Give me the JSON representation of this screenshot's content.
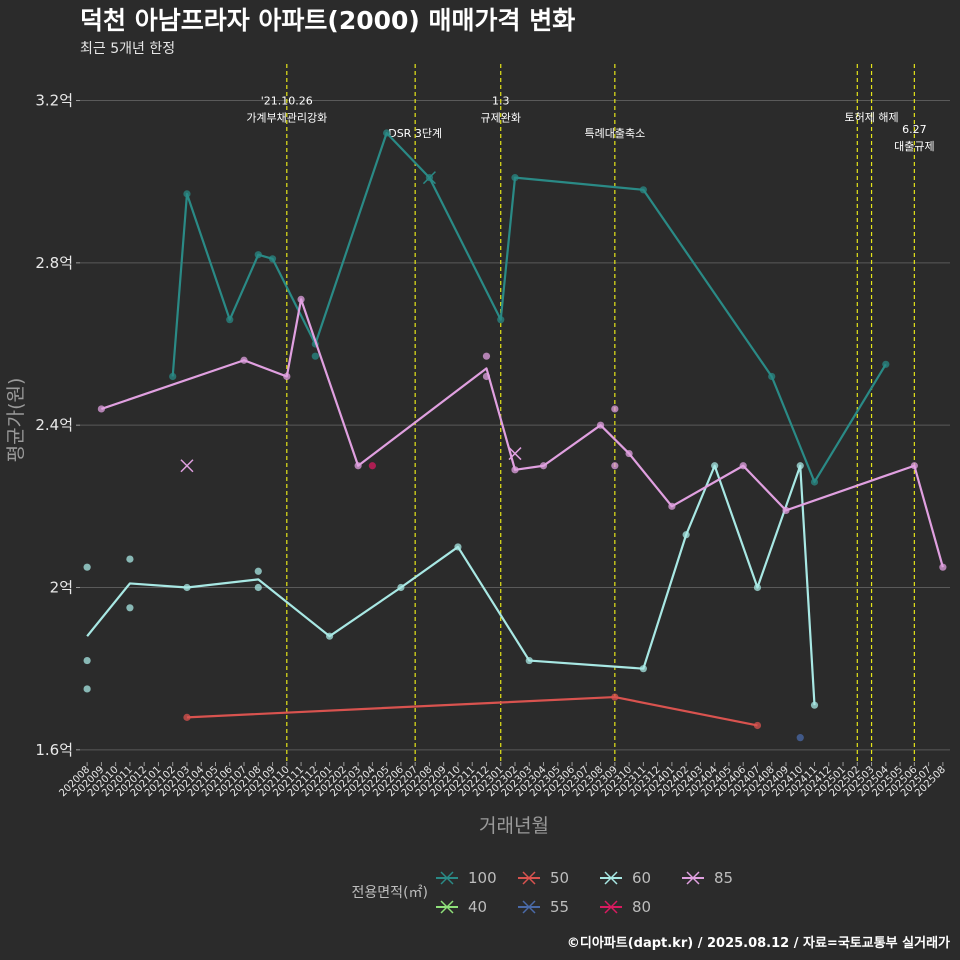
{
  "header": {
    "title": "덕천 아남프라자 아파트(2000) 매매가격 변화",
    "subtitle": "최근 5개년 한정"
  },
  "caption": "©디아파트(dapt.kr) / 2025.08.12 / 자료=국토교통부 실거래가",
  "colors": {
    "background": "#2b2b2b",
    "grid": "#5a5a5a",
    "event_line": "#e6e619",
    "s100": "#2a8a86",
    "s40": "#8fe07a",
    "s50": "#d9534f",
    "s55": "#4a6aa8",
    "s60": "#a8e8e4",
    "s80": "#d81b60",
    "s85": "#e0a0e0"
  },
  "chart_data": {
    "type": "line",
    "xlabel": "거래년월",
    "ylabel": "평균가(원)",
    "x_categories": [
      "202008",
      "202009",
      "202010",
      "202011",
      "202012",
      "202101",
      "202102",
      "202103",
      "202104",
      "202105",
      "202106",
      "202107",
      "202108",
      "202109",
      "202110",
      "202111",
      "202112",
      "202201",
      "202202",
      "202203",
      "202204",
      "202205",
      "202206",
      "202207",
      "202208",
      "202209",
      "202210",
      "202211",
      "202212",
      "202301",
      "202302",
      "202303",
      "202304",
      "202305",
      "202306",
      "202307",
      "202308",
      "202309",
      "202310",
      "202311",
      "202312",
      "202401",
      "202402",
      "202403",
      "202404",
      "202405",
      "202406",
      "202407",
      "202408",
      "202409",
      "202410",
      "202411",
      "202412",
      "202501",
      "202502",
      "202503",
      "202504",
      "202505",
      "202506",
      "202507",
      "202508"
    ],
    "y_ticks": [
      {
        "value": 1.6,
        "label": "1.6억"
      },
      {
        "value": 2.0,
        "label": "2억"
      },
      {
        "value": 2.4,
        "label": "2.4억"
      },
      {
        "value": 2.8,
        "label": "2.8억"
      },
      {
        "value": 3.2,
        "label": "3.2억"
      }
    ],
    "ylim": [
      1.57,
      3.29
    ],
    "legend_title": "전용면적(㎡)",
    "legend_placement": "bottom",
    "legend": [
      {
        "name": "100",
        "color_key": "s100"
      },
      {
        "name": "50",
        "color_key": "s50"
      },
      {
        "name": "60",
        "color_key": "s60"
      },
      {
        "name": "85",
        "color_key": "s85"
      },
      {
        "name": "40",
        "color_key": "s40"
      },
      {
        "name": "55",
        "color_key": "s55"
      },
      {
        "name": "80",
        "color_key": "s80"
      }
    ],
    "events": [
      {
        "x": "202110",
        "lines": [
          "'21.10.26",
          "가계부채관리강화"
        ],
        "label_y": 3.19
      },
      {
        "x": "202207",
        "lines": [
          "DSR 3단계"
        ],
        "label_y": 3.11
      },
      {
        "x": "202301",
        "lines": [
          "1.3",
          "규제완화"
        ],
        "label_y": 3.19
      },
      {
        "x": "202309",
        "lines": [
          "특례대출축소"
        ],
        "label_y": 3.11
      },
      {
        "x": "202502",
        "lines": [],
        "label_y": 3.2
      },
      {
        "x": "202503",
        "lines": [
          "토허제 해제"
        ],
        "label_y": 3.15
      },
      {
        "x": "202506",
        "lines": [
          "6.27",
          "대출규제"
        ],
        "label_y": 3.12
      }
    ],
    "series": [
      {
        "name": "100",
        "color_key": "s100",
        "line": [
          [
            "202102",
            2.52
          ],
          [
            "202103",
            2.97
          ],
          [
            "202106",
            2.66
          ],
          [
            "202108",
            2.82
          ],
          [
            "202109",
            2.81
          ],
          [
            "202112",
            2.6
          ],
          [
            "202205",
            3.12
          ],
          [
            "202208",
            3.01
          ],
          [
            "202301",
            2.66
          ],
          [
            "202302",
            3.01
          ],
          [
            "202311",
            2.98
          ],
          [
            "202408",
            2.52
          ],
          [
            "202411",
            2.26
          ],
          [
            "202504",
            2.55
          ]
        ],
        "points": [
          [
            "202102",
            2.52
          ],
          [
            "202103",
            2.97
          ],
          [
            "202106",
            2.66
          ],
          [
            "202108",
            2.82
          ],
          [
            "202109",
            2.81
          ],
          [
            "202112",
            2.6
          ],
          [
            "202112",
            2.57
          ],
          [
            "202205",
            3.12
          ],
          [
            "202208",
            3.01
          ],
          [
            "202301",
            2.66
          ],
          [
            "202302",
            3.01
          ],
          [
            "202311",
            2.98
          ],
          [
            "202408",
            2.52
          ],
          [
            "202411",
            2.26
          ],
          [
            "202504",
            2.55
          ]
        ],
        "crosses": [
          [
            "202208",
            3.01
          ]
        ]
      },
      {
        "name": "85",
        "color_key": "s85",
        "line": [
          [
            "202009",
            2.44
          ],
          [
            "202107",
            2.56
          ],
          [
            "202110",
            2.52
          ],
          [
            "202111",
            2.71
          ],
          [
            "202203",
            2.3
          ],
          [
            "202212",
            2.54
          ],
          [
            "202302",
            2.29
          ],
          [
            "202304",
            2.3
          ],
          [
            "202308",
            2.4
          ],
          [
            "202310",
            2.33
          ],
          [
            "202401",
            2.2
          ],
          [
            "202406",
            2.3
          ],
          [
            "202409",
            2.19
          ],
          [
            "202506",
            2.3
          ],
          [
            "202508",
            2.05
          ]
        ],
        "points": [
          [
            "202009",
            2.44
          ],
          [
            "202107",
            2.56
          ],
          [
            "202110",
            2.52
          ],
          [
            "202111",
            2.71
          ],
          [
            "202203",
            2.3
          ],
          [
            "202212",
            2.57
          ],
          [
            "202212",
            2.52
          ],
          [
            "202302",
            2.29
          ],
          [
            "202304",
            2.3
          ],
          [
            "202308",
            2.4
          ],
          [
            "202309",
            2.44
          ],
          [
            "202309",
            2.3
          ],
          [
            "202310",
            2.33
          ],
          [
            "202401",
            2.2
          ],
          [
            "202406",
            2.3
          ],
          [
            "202409",
            2.19
          ],
          [
            "202506",
            2.3
          ],
          [
            "202508",
            2.05
          ]
        ],
        "crosses": [
          [
            "202103",
            2.3
          ],
          [
            "202302",
            2.33
          ]
        ]
      },
      {
        "name": "60",
        "color_key": "s60",
        "line": [
          [
            "202008",
            1.88
          ],
          [
            "202011",
            2.01
          ],
          [
            "202103",
            2.0
          ],
          [
            "202108",
            2.02
          ],
          [
            "202201",
            1.88
          ],
          [
            "202206",
            2.0
          ],
          [
            "202210",
            2.1
          ],
          [
            "202303",
            1.82
          ],
          [
            "202311",
            1.8
          ],
          [
            "202402",
            2.13
          ],
          [
            "202404",
            2.3
          ],
          [
            "202407",
            2.0
          ],
          [
            "202410",
            2.3
          ],
          [
            "202411",
            1.71
          ]
        ],
        "points": [
          [
            "202008",
            2.05
          ],
          [
            "202008",
            1.82
          ],
          [
            "202008",
            1.75
          ],
          [
            "202011",
            2.07
          ],
          [
            "202011",
            1.95
          ],
          [
            "202103",
            2.0
          ],
          [
            "202108",
            2.04
          ],
          [
            "202108",
            2.0
          ],
          [
            "202201",
            1.88
          ],
          [
            "202206",
            2.0
          ],
          [
            "202210",
            2.1
          ],
          [
            "202303",
            1.82
          ],
          [
            "202311",
            1.8
          ],
          [
            "202402",
            2.13
          ],
          [
            "202404",
            2.3
          ],
          [
            "202407",
            2.0
          ],
          [
            "202410",
            2.3
          ],
          [
            "202411",
            1.71
          ]
        ],
        "crosses": []
      },
      {
        "name": "50",
        "color_key": "s50",
        "line": [
          [
            "202103",
            1.68
          ],
          [
            "202309",
            1.73
          ],
          [
            "202407",
            1.66
          ]
        ],
        "points": [
          [
            "202103",
            1.68
          ],
          [
            "202309",
            1.73
          ],
          [
            "202407",
            1.66
          ]
        ],
        "crosses": []
      },
      {
        "name": "55",
        "color_key": "s55",
        "line": [],
        "points": [
          [
            "202410",
            1.63
          ]
        ],
        "crosses": []
      },
      {
        "name": "80",
        "color_key": "s80",
        "line": [],
        "points": [
          [
            "202204",
            2.3
          ]
        ],
        "crosses": []
      },
      {
        "name": "40",
        "color_key": "s40",
        "line": [],
        "points": [],
        "crosses": []
      }
    ]
  }
}
